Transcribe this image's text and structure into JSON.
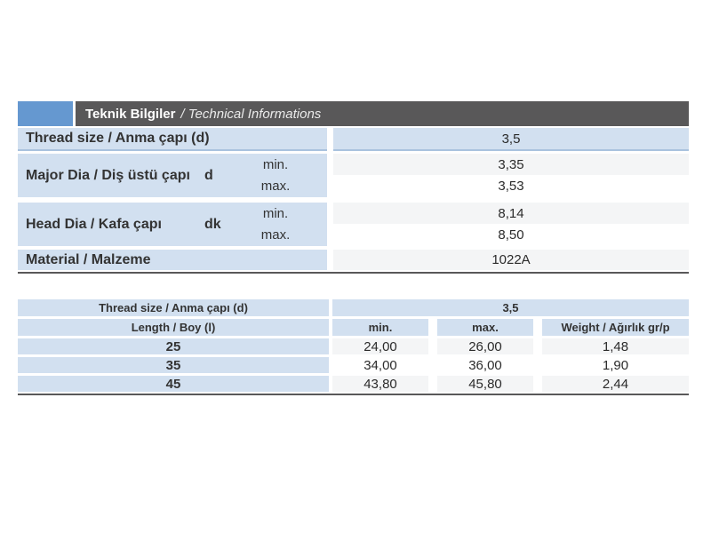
{
  "colors": {
    "accent_blue": "#6598d0",
    "bar_gray": "#595859",
    "row_blue": "#d2e0f0",
    "row_gray": "#f4f5f6",
    "blue_border": "#a9c2de"
  },
  "header": {
    "title_bold": "Teknik Bilgiler",
    "title_italic": "/ Technical Informations"
  },
  "table1": {
    "rows": [
      {
        "label": "Thread size / Anma çapı (d)",
        "value": "3,5"
      },
      {
        "label": "Major Dia / Diş üstü çapı",
        "symbol": "d",
        "min_label": "min.",
        "max_label": "max.",
        "min": "3,35",
        "max": "3,53"
      },
      {
        "label": "Head Dia / Kafa çapı",
        "symbol": "dk",
        "min_label": "min.",
        "max_label": "max.",
        "min": "8,14",
        "max": "8,50"
      },
      {
        "label": "Material / Malzeme",
        "value": "1022A"
      }
    ]
  },
  "table2": {
    "thread_label": "Thread size / Anma çapı (d)",
    "thread_value": "3,5",
    "columns": {
      "length": "Length / Boy (l)",
      "min": "min.",
      "max": "max.",
      "weight": "Weight / Ağırlık gr/p"
    },
    "rows": [
      {
        "length": "25",
        "min": "24,00",
        "max": "26,00",
        "weight": "1,48"
      },
      {
        "length": "35",
        "min": "34,00",
        "max": "36,00",
        "weight": "1,90"
      },
      {
        "length": "45",
        "min": "43,80",
        "max": "45,80",
        "weight": "2,44"
      }
    ]
  }
}
